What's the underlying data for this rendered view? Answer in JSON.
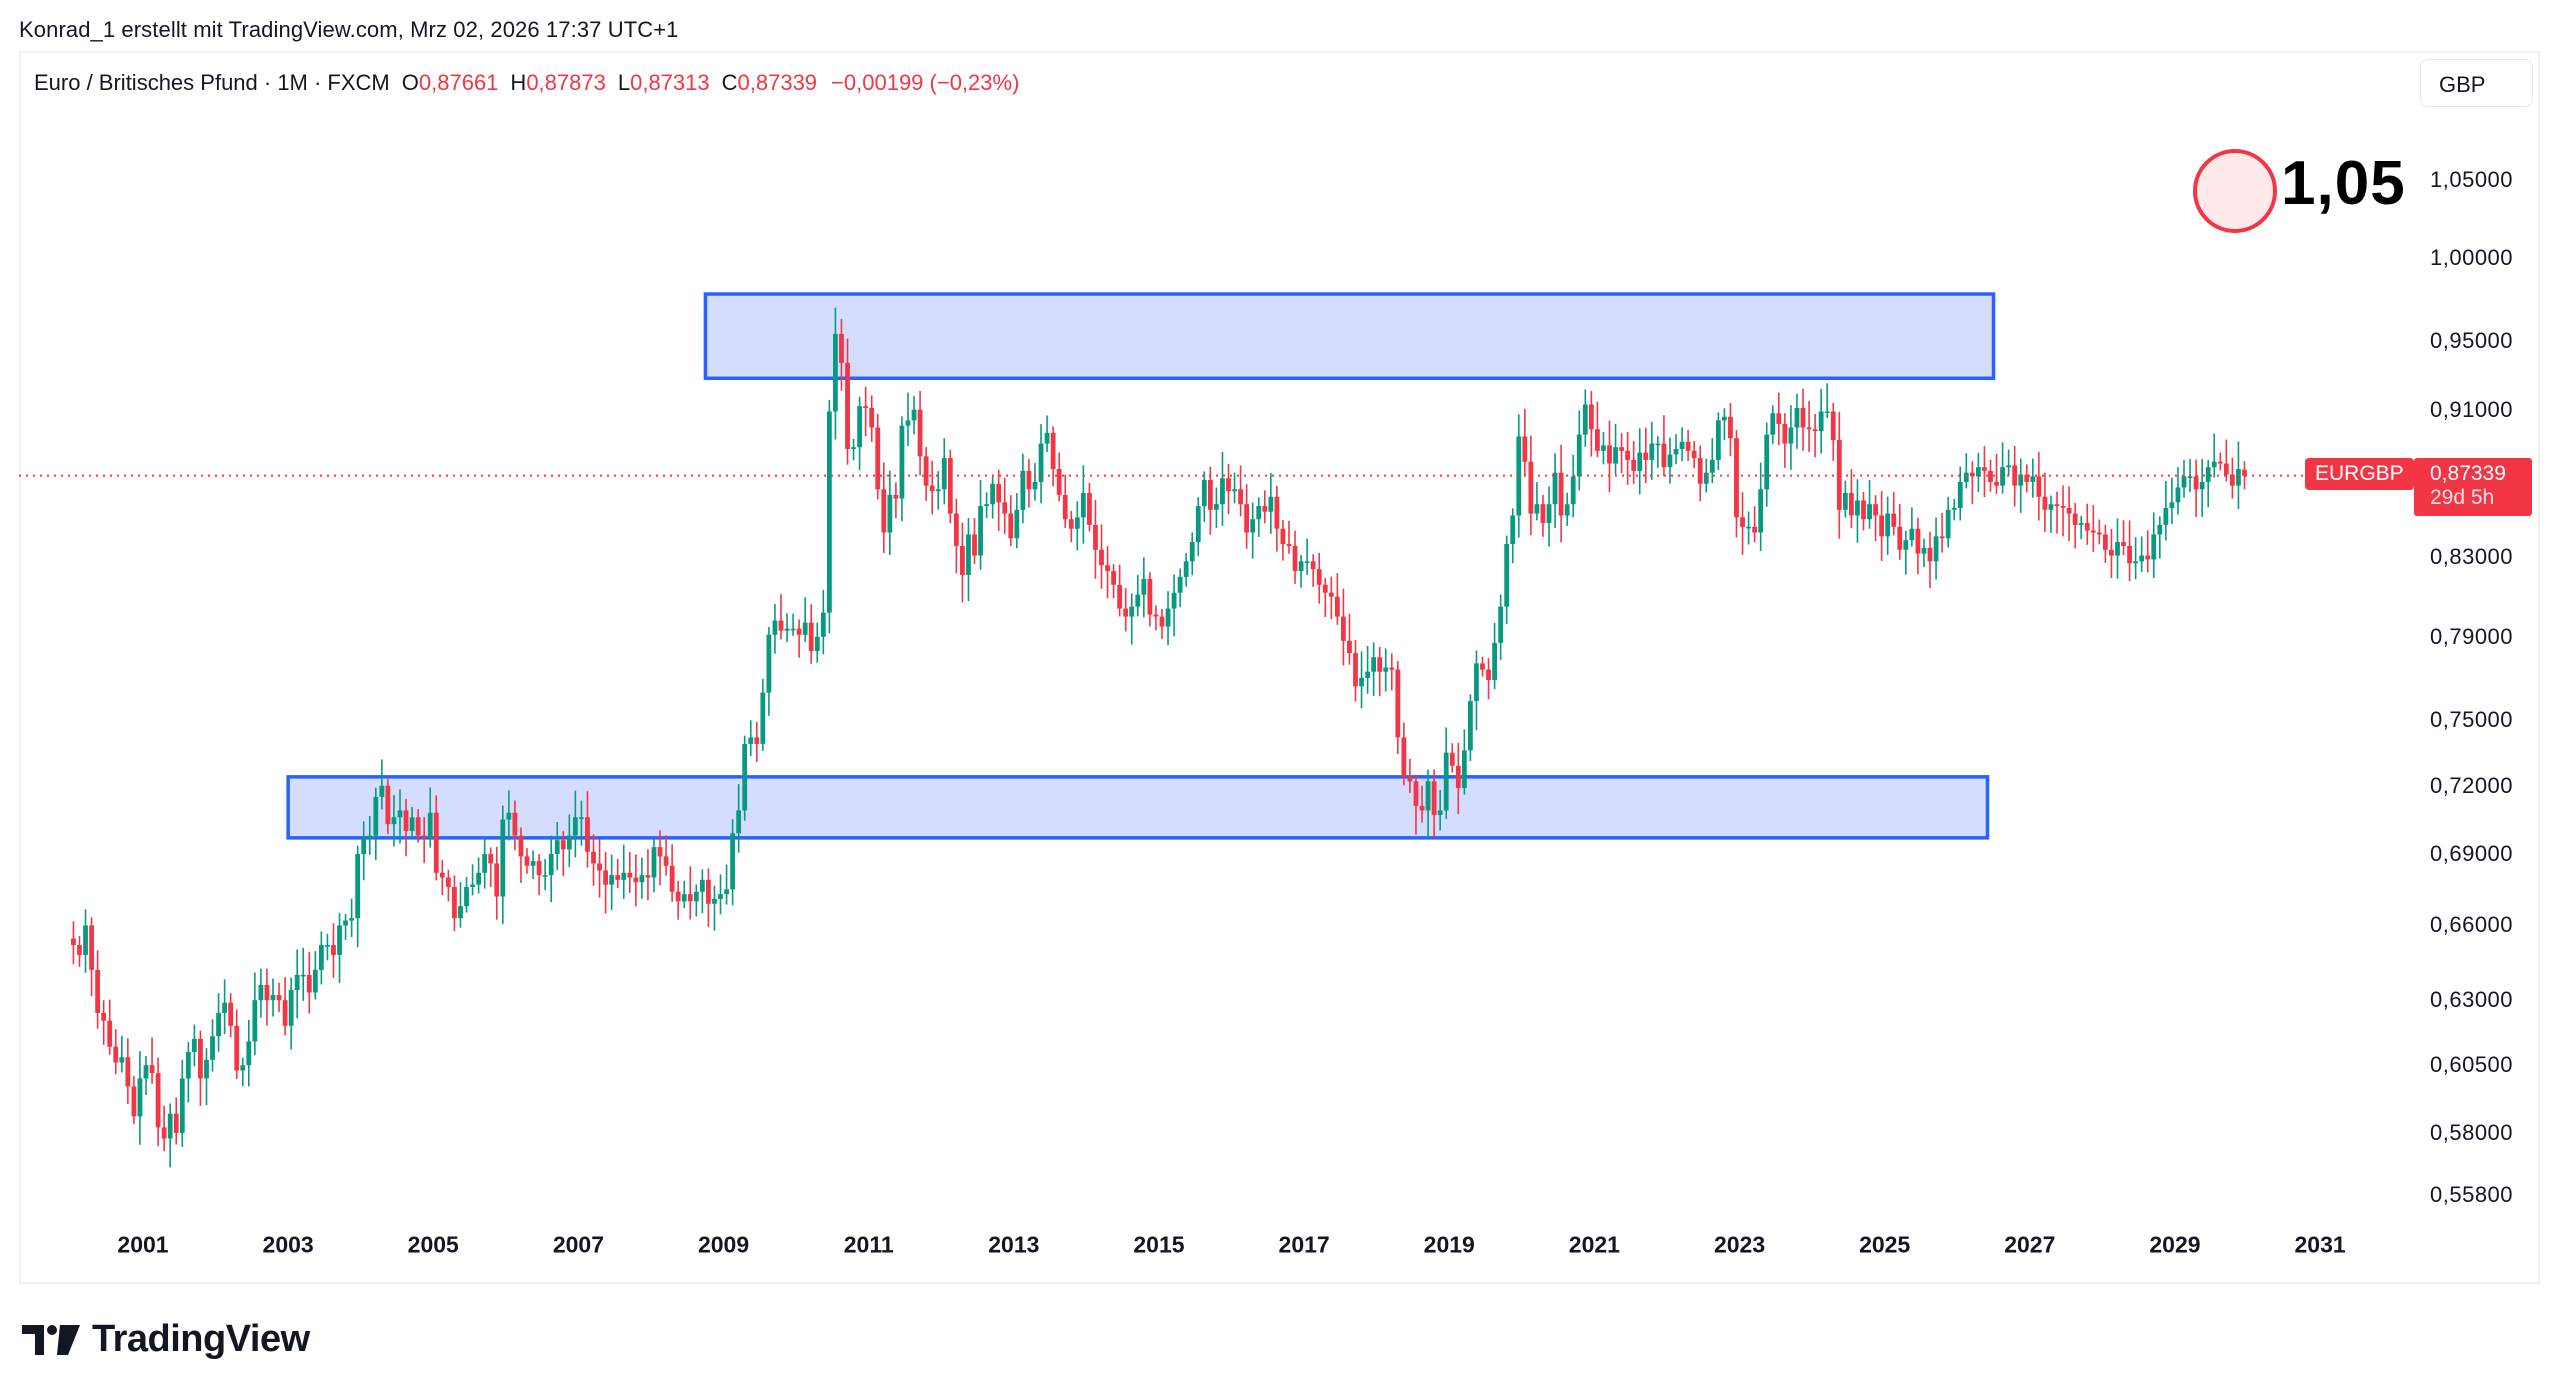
{
  "attribution": "Konrad_1 erstellt mit TradingView.com, Mrz 02, 2026 17:37 UTC+1",
  "legend": {
    "symbol_desc": "Euro / Britisches Pfund · 1M · FXCM",
    "open_key": "O",
    "open": "0,87661",
    "high_key": "H",
    "high": "0,87873",
    "low_key": "L",
    "low": "0,87313",
    "close_key": "C",
    "close": "0,87339",
    "change": "−0,00199 (−0,23%)"
  },
  "currency": "GBP",
  "annotation": {
    "label": "1,05",
    "icon": "circle-marker-icon"
  },
  "last_price_tag": {
    "symbol": "EURGBP",
    "price": "0,87339",
    "countdown": "29d 5h"
  },
  "logo": {
    "wordmark": "TradingView",
    "icon": "tradingview-logo-icon"
  },
  "colors": {
    "up": "#089981",
    "down": "#f23645",
    "zone_fill": "#d4defc",
    "zone_border": "#2962ff",
    "last_price_line": "#f23645"
  },
  "price_axis": {
    "scale": "log",
    "labels": [
      "1,05000",
      "1,00000",
      "0,95000",
      "0,91000",
      "0,83000",
      "0,79000",
      "0,75000",
      "0,72000",
      "0,69000",
      "0,66000",
      "0,63000",
      "0,60500",
      "0,58000",
      "0,55800"
    ],
    "values": [
      1.05,
      1.0,
      0.95,
      0.91,
      0.83,
      0.79,
      0.75,
      0.72,
      0.69,
      0.66,
      0.63,
      0.605,
      0.58,
      0.558
    ]
  },
  "time_axis": {
    "labels": [
      "2001",
      "2003",
      "2005",
      "2007",
      "2009",
      "2011",
      "2013",
      "2015",
      "2017",
      "2019",
      "2021",
      "2023",
      "2025",
      "2027",
      "2029",
      "2031"
    ]
  },
  "chart_data": {
    "type": "candlestick",
    "title": "Euro / Britisches Pfund · 1M · FXCM",
    "symbol": "EURGBP",
    "interval": "1M",
    "xlabel": "",
    "ylabel": "GBP",
    "ylim": [
      0.545,
      1.07
    ],
    "yscale": "log",
    "xrange": [
      "2000-01",
      "2031-12"
    ],
    "grid": false,
    "last": {
      "open": 0.87661,
      "high": 0.87873,
      "low": 0.87313,
      "close": 0.87339,
      "change": -0.00199,
      "change_pct": -0.23
    },
    "zones": [
      {
        "name": "resistance-zone",
        "x_start": "2008-10",
        "x_end": "2026-07",
        "y_low": 0.928,
        "y_high": 0.978
      },
      {
        "name": "support-zone",
        "x_start": "2003-01",
        "x_end": "2026-06",
        "y_low": 0.697,
        "y_high": 0.724
      }
    ],
    "annotations": [
      {
        "type": "circle-label",
        "text": "1,05",
        "y": 1.05
      }
    ],
    "monthly_close_path": {
      "start": "2000-01",
      "closes": [
        0.652,
        0.648,
        0.66,
        0.642,
        0.625,
        0.622,
        0.612,
        0.606,
        0.608,
        0.597,
        0.586,
        0.6,
        0.605,
        0.602,
        0.582,
        0.578,
        0.587,
        0.58,
        0.6,
        0.61,
        0.615,
        0.6,
        0.607,
        0.616,
        0.625,
        0.629,
        0.62,
        0.603,
        0.605,
        0.614,
        0.63,
        0.636,
        0.63,
        0.632,
        0.63,
        0.62,
        0.634,
        0.64,
        0.64,
        0.633,
        0.642,
        0.652,
        0.652,
        0.648,
        0.66,
        0.662,
        0.663,
        0.69,
        0.697,
        0.698,
        0.715,
        0.72,
        0.703,
        0.706,
        0.709,
        0.7,
        0.706,
        0.698,
        0.697,
        0.708,
        0.682,
        0.68,
        0.676,
        0.663,
        0.668,
        0.676,
        0.677,
        0.682,
        0.69,
        0.686,
        0.672,
        0.705,
        0.708,
        0.698,
        0.689,
        0.685,
        0.687,
        0.681,
        0.681,
        0.69,
        0.696,
        0.692,
        0.698,
        0.706,
        0.706,
        0.691,
        0.686,
        0.683,
        0.677,
        0.681,
        0.679,
        0.682,
        0.68,
        0.678,
        0.681,
        0.68,
        0.693,
        0.689,
        0.685,
        0.674,
        0.67,
        0.673,
        0.67,
        0.674,
        0.679,
        0.669,
        0.671,
        0.673,
        0.675,
        0.699,
        0.709,
        0.739,
        0.742,
        0.739,
        0.763,
        0.791,
        0.798,
        0.793,
        0.794,
        0.794,
        0.791,
        0.797,
        0.783,
        0.79,
        0.802,
        0.909,
        0.954,
        0.937,
        0.888,
        0.889,
        0.912,
        0.911,
        0.9,
        0.866,
        0.843,
        0.863,
        0.861,
        0.901,
        0.904,
        0.91,
        0.884,
        0.868,
        0.865,
        0.866,
        0.883,
        0.853,
        0.836,
        0.821,
        0.842,
        0.831,
        0.857,
        0.858,
        0.869,
        0.859,
        0.853,
        0.84,
        0.855,
        0.876,
        0.866,
        0.87,
        0.891,
        0.897,
        0.877,
        0.863,
        0.85,
        0.845,
        0.851,
        0.864,
        0.847,
        0.834,
        0.826,
        0.823,
        0.816,
        0.804,
        0.8,
        0.805,
        0.811,
        0.819,
        0.801,
        0.8,
        0.795,
        0.804,
        0.812,
        0.82,
        0.828,
        0.838,
        0.857,
        0.871,
        0.855,
        0.858,
        0.872,
        0.865,
        0.866,
        0.858,
        0.843,
        0.85,
        0.857,
        0.854,
        0.862,
        0.845,
        0.837,
        0.836,
        0.823,
        0.828,
        0.828,
        0.824,
        0.816,
        0.812,
        0.81,
        0.8,
        0.788,
        0.782,
        0.766,
        0.77,
        0.773,
        0.78,
        0.773,
        0.775,
        0.774,
        0.742,
        0.724,
        0.722,
        0.711,
        0.709,
        0.722,
        0.707,
        0.709,
        0.735,
        0.729,
        0.719,
        0.736,
        0.759,
        0.777,
        0.774,
        0.769,
        0.787,
        0.805,
        0.837,
        0.852,
        0.895,
        0.881,
        0.853,
        0.858,
        0.848,
        0.858,
        0.875,
        0.852,
        0.858,
        0.873,
        0.896,
        0.913,
        0.899,
        0.887,
        0.89,
        0.88,
        0.889,
        0.887,
        0.882,
        0.876,
        0.886,
        0.882,
        0.891,
        0.891,
        0.878,
        0.885,
        0.888,
        0.892,
        0.887,
        0.883,
        0.869,
        0.875,
        0.882,
        0.904,
        0.906,
        0.894,
        0.851,
        0.846,
        0.846,
        0.843,
        0.866,
        0.896,
        0.908,
        0.902,
        0.891,
        0.9,
        0.911,
        0.9,
        0.899,
        0.898,
        0.909,
        0.909,
        0.893,
        0.855,
        0.864,
        0.852,
        0.86,
        0.85,
        0.858,
        0.852,
        0.841,
        0.853,
        0.846,
        0.834,
        0.839,
        0.845,
        0.832,
        0.835,
        0.828,
        0.841,
        0.84,
        0.855,
        0.856,
        0.87,
        0.875,
        0.873,
        0.878,
        0.876,
        0.87,
        0.868,
        0.878,
        0.879,
        0.868,
        0.874,
        0.87,
        0.873,
        0.862,
        0.855,
        0.858,
        0.857,
        0.856,
        0.853,
        0.847,
        0.848,
        0.844,
        0.843,
        0.842,
        0.834,
        0.831,
        0.838,
        0.836,
        0.827,
        0.828,
        0.831,
        0.829,
        0.842,
        0.847,
        0.856,
        0.859,
        0.867,
        0.873,
        0.873,
        0.866,
        0.87,
        0.878,
        0.881,
        0.88,
        0.874,
        0.868,
        0.877,
        0.873
      ]
    }
  }
}
